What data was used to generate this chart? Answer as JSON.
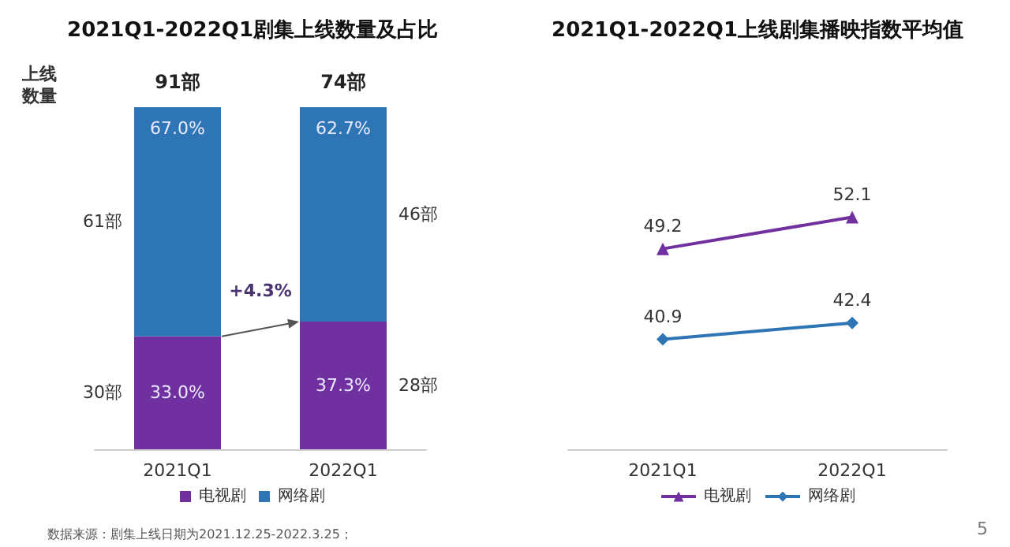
{
  "chart_data": [
    {
      "type": "bar",
      "title": "2021Q1-2022Q1剧集上线数量及占比",
      "ylabel": "上线数量",
      "categories": [
        "2021Q1",
        "2022Q1"
      ],
      "stacked": true,
      "ylim": [
        0,
        100
      ],
      "legend": "bottom",
      "series": [
        {
          "name": "电视剧",
          "color": "#7030a0",
          "values": [
            33.0,
            37.3
          ],
          "value_labels": [
            "33.0%",
            "37.3%"
          ]
        },
        {
          "name": "网络剧",
          "color": "#2e75b6",
          "values": [
            67.0,
            62.7
          ],
          "value_labels": [
            "67.0%",
            "62.7%"
          ]
        }
      ],
      "annotations": [
        "91部",
        "74部",
        "30部",
        "61部",
        "28部",
        "46部",
        "+4.3%",
        "数据来源：剧集上线日期为2021.12.25-2022.3.25；"
      ]
    },
    {
      "type": "line",
      "title": "2021Q1-2022Q1上线剧集播映指数平均值",
      "categories": [
        "2021Q1",
        "2022Q1"
      ],
      "data_labels": true,
      "legend": "bottom",
      "series": [
        {
          "name": "电视剧",
          "color": "#7030a0",
          "marker": "triangle",
          "values": [
            49.2,
            52.1
          ]
        },
        {
          "name": "网络剧",
          "color": "#2e75b6",
          "marker": "diamond",
          "values": [
            40.9,
            42.4
          ]
        }
      ],
      "annotations": [
        "5"
      ]
    }
  ]
}
